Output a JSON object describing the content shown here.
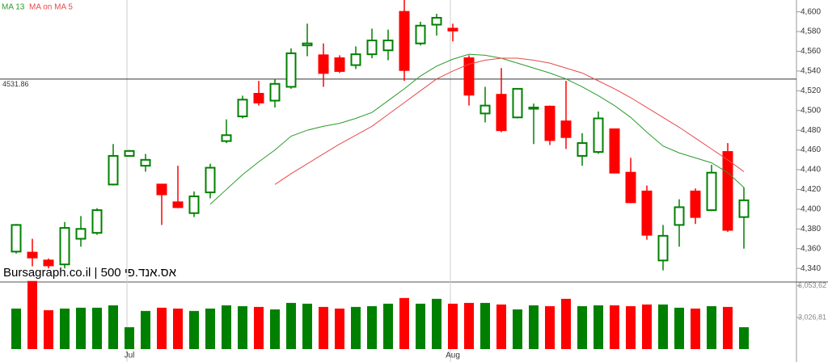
{
  "chart_data": {
    "type": "candlestick",
    "legend": [
      "MA 13",
      "MA on MA 5"
    ],
    "watermark": "Bursagraph.co.il | אס.אנד.פי 500",
    "categories": [
      null,
      null,
      null,
      null,
      null,
      null,
      null,
      "Jul",
      null,
      null,
      null,
      null,
      null,
      null,
      null,
      null,
      null,
      null,
      null,
      null,
      null,
      null,
      null,
      null,
      null,
      null,
      null,
      "Aug",
      null,
      null,
      null,
      null,
      null,
      null,
      null,
      null,
      null,
      null,
      null,
      null,
      null,
      null,
      null,
      null,
      null,
      null
    ],
    "open": [
      4357,
      4356,
      4348,
      4344,
      4370,
      4376,
      4425,
      4454,
      4444,
      4425,
      4407,
      4396,
      4417,
      4469,
      4494,
      4517,
      4510,
      4524,
      4566,
      4556,
      4553,
      4546,
      4557,
      4561,
      4600,
      4568,
      4587,
      4583,
      4553,
      4497,
      4516,
      4493,
      4502,
      4504,
      4489,
      4454,
      4458,
      4481,
      4437,
      4418,
      4348,
      4384,
      4418,
      4399,
      4458,
      4392
    ],
    "high": [
      4385,
      4370,
      4350,
      4387,
      4393,
      4401,
      4466,
      4460,
      4456,
      4425,
      4444,
      4418,
      4446,
      4491,
      4515,
      4530,
      4532,
      4563,
      4588,
      4568,
      4556,
      4565,
      4583,
      4582,
      4612,
      4590,
      4598,
      4588,
      4556,
      4524,
      4543,
      4522,
      4507,
      4505,
      4530,
      4477,
      4499,
      4481,
      4452,
      4424,
      4384,
      4410,
      4421,
      4445,
      4467,
      4422
    ],
    "low": [
      4355,
      4342,
      4340,
      4340,
      4362,
      4374,
      4424,
      4453,
      4438,
      4384,
      4401,
      4392,
      4411,
      4467,
      4492,
      4505,
      4503,
      4522,
      4555,
      4524,
      4538,
      4542,
      4553,
      4551,
      4530,
      4566,
      4576,
      4570,
      4505,
      4488,
      4478,
      4492,
      4466,
      4465,
      4461,
      4444,
      4456,
      4437,
      4406,
      4369,
      4338,
      4362,
      4385,
      4398,
      4377,
      4360
    ],
    "close": [
      4384,
      4351,
      4343,
      4381,
      4380,
      4399,
      4454,
      4459,
      4450,
      4415,
      4402,
      4413,
      4442,
      4475,
      4511,
      4508,
      4527,
      4558,
      4568,
      4538,
      4540,
      4557,
      4571,
      4571,
      4541,
      4586,
      4594,
      4581,
      4516,
      4505,
      4480,
      4522,
      4503,
      4470,
      4473,
      4467,
      4492,
      4437,
      4407,
      4374,
      4373,
      4402,
      4392,
      4437,
      4379,
      4409
    ],
    "volume": [
      3880,
      6520,
      3725,
      3880,
      3960,
      3960,
      4190,
      2095,
      3650,
      3960,
      3880,
      3650,
      3880,
      4190,
      4110,
      4035,
      3800,
      4420,
      4345,
      4035,
      3880,
      4035,
      4110,
      4345,
      4890,
      4345,
      4810,
      4345,
      4420,
      4420,
      4270,
      3800,
      4190,
      4110,
      4810,
      4110,
      4190,
      4190,
      4110,
      4270,
      4270,
      3960,
      3880,
      4110,
      4035,
      2095
    ],
    "series": [
      {
        "name": "MA 13",
        "color": "#2a9a2a",
        "values": [
          null,
          null,
          null,
          null,
          null,
          null,
          null,
          null,
          null,
          null,
          null,
          null,
          4405,
          4420,
          4435,
          4448,
          4460,
          4474,
          4480,
          4484,
          4487,
          4492,
          4498,
          4510,
          4522,
          4535,
          4545,
          4552,
          4557,
          4556,
          4553,
          4548,
          4543,
          4538,
          4532,
          4524,
          4515,
          4505,
          4493,
          4478,
          4464,
          4457,
          4452,
          4447,
          4437,
          4422
        ]
      },
      {
        "name": "MA on MA 5",
        "color": "#e84a4a",
        "values": [
          null,
          null,
          null,
          null,
          null,
          null,
          null,
          null,
          null,
          null,
          null,
          null,
          null,
          null,
          null,
          null,
          4425,
          4436,
          4446,
          4456,
          4466,
          4475,
          4484,
          4496,
          4508,
          4520,
          4532,
          4540,
          4547,
          4551,
          4553,
          4553,
          4551,
          4548,
          4543,
          4538,
          4530,
          4522,
          4513,
          4503,
          4493,
          4483,
          4472,
          4461,
          4450,
          4438
        ]
      }
    ],
    "up_color": "#008000",
    "down_color": "#ff0000",
    "reference_line": 4531.86,
    "ylim": [
      4327,
      4612
    ],
    "yticks": [
      {
        "value": 4340,
        "label": "4,340"
      },
      {
        "value": 4360,
        "label": "4,360"
      },
      {
        "value": 4380,
        "label": "4,380"
      },
      {
        "value": 4400,
        "label": "4,400"
      },
      {
        "value": 4420,
        "label": "4,420"
      },
      {
        "value": 4440,
        "label": "4,440"
      },
      {
        "value": 4460,
        "label": "4,460"
      },
      {
        "value": 4480,
        "label": "4,480"
      },
      {
        "value": 4500,
        "label": "4,500"
      },
      {
        "value": 4520,
        "label": "4,520"
      },
      {
        "value": 4540,
        "label": "4,540"
      },
      {
        "value": 4560,
        "label": "4,560"
      },
      {
        "value": 4580,
        "label": "4,580"
      },
      {
        "value": 4600,
        "label": "4,600"
      }
    ],
    "vlim": [
      0,
      6500
    ],
    "vticks": [
      {
        "value": 3026.81,
        "label": "3,026,81"
      },
      {
        "value": 6053.62,
        "label": "6,053,62"
      }
    ]
  }
}
